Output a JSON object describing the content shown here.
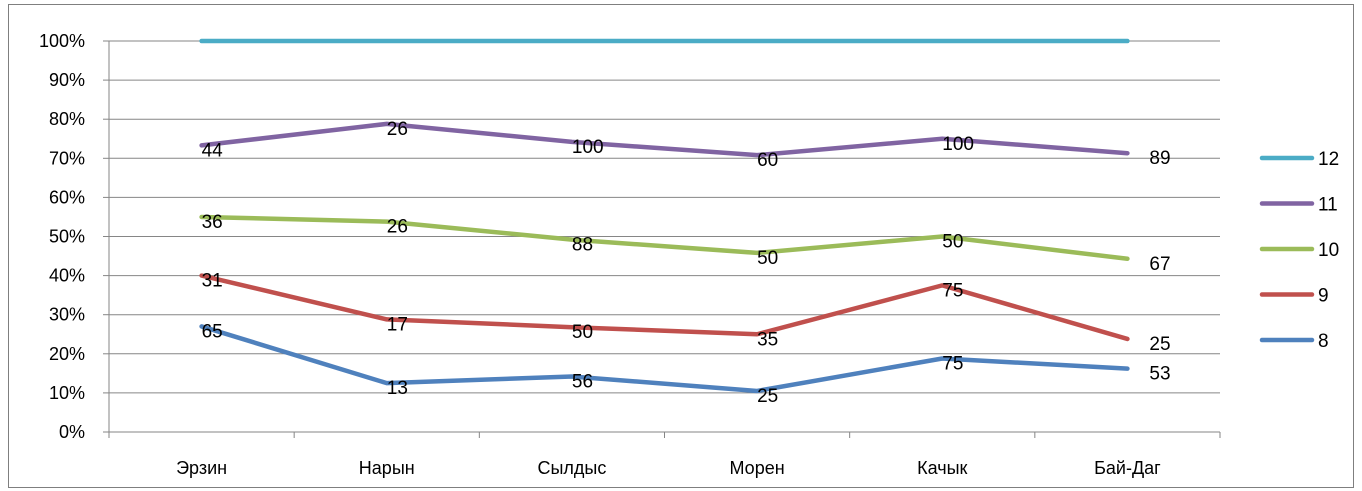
{
  "chart_data": {
    "type": "line",
    "categories": [
      "Эрзин",
      "Нарын",
      "Сылдыс",
      "Морен",
      "Качык",
      "Бай-Даг"
    ],
    "y_ticks": [
      "0%",
      "10%",
      "20%",
      "30%",
      "40%",
      "50%",
      "60%",
      "70%",
      "80%",
      "90%",
      "100%"
    ],
    "ylim": [
      0,
      100
    ],
    "grid": true,
    "legend_position": "right",
    "series": [
      {
        "name": "8",
        "color": "#4f81bd",
        "values": [
          27,
          12.5,
          14.2,
          10.5,
          18.8,
          16.2
        ],
        "labels": [
          "65",
          "13",
          "56",
          "25",
          "75",
          "53"
        ]
      },
      {
        "name": "9",
        "color": "#c0504d",
        "values": [
          40,
          28.8,
          26.8,
          25,
          37.5,
          23.8
        ],
        "labels": [
          "31",
          "17",
          "50",
          "35",
          "75",
          "25"
        ]
      },
      {
        "name": "10",
        "color": "#9bbb59",
        "values": [
          55,
          53.8,
          49.2,
          45.8,
          50,
          44.3
        ],
        "labels": [
          "36",
          "26",
          "88",
          "50",
          "50",
          "67"
        ]
      },
      {
        "name": "11",
        "color": "#8064a2",
        "values": [
          73.3,
          78.8,
          74.2,
          70.8,
          75,
          71.3
        ],
        "labels": [
          "44",
          "26",
          "100",
          "60",
          "100",
          "89"
        ]
      },
      {
        "name": "12",
        "color": "#4bacc6",
        "values": [
          100,
          100,
          100,
          100,
          100,
          100
        ],
        "labels": []
      }
    ],
    "legend_order": [
      "12",
      "11",
      "10",
      "9",
      "8"
    ]
  }
}
